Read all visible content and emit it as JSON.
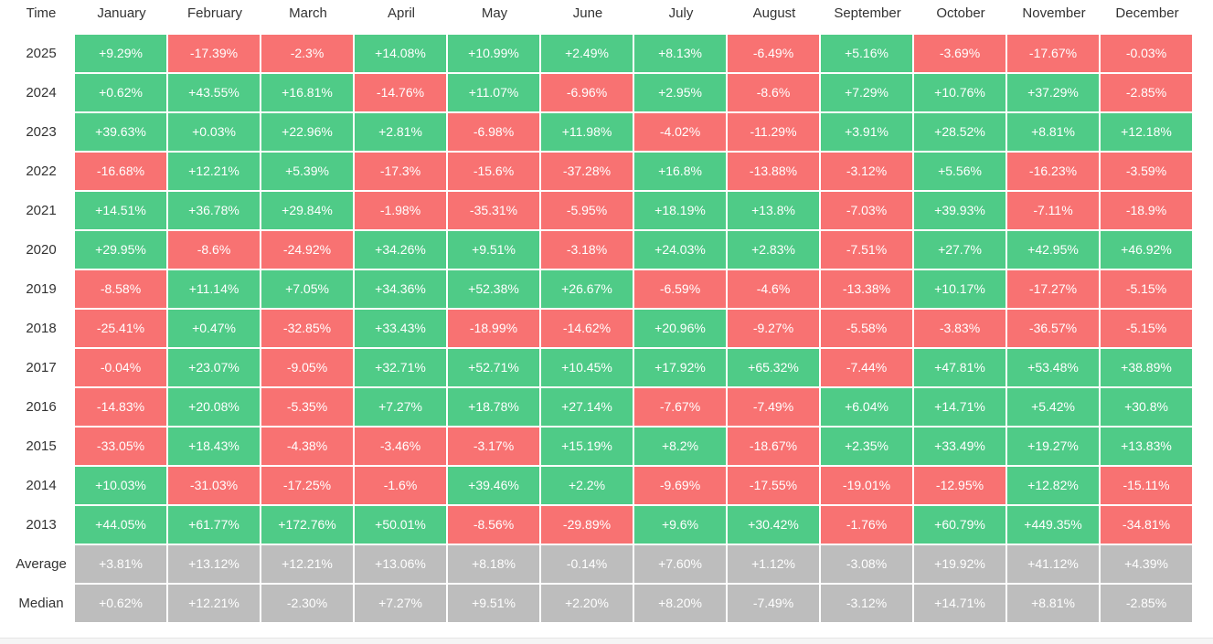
{
  "table": {
    "header": [
      "Time",
      "January",
      "February",
      "March",
      "April",
      "May",
      "June",
      "July",
      "August",
      "September",
      "October",
      "November",
      "December"
    ],
    "rows": [
      [
        "2025",
        "+9.29%",
        "-17.39%",
        "-2.3%",
        "+14.08%",
        "+10.99%",
        "+2.49%",
        "+8.13%",
        "-6.49%",
        "+5.16%",
        "-3.69%",
        "-17.67%",
        "-0.03%"
      ],
      [
        "2024",
        "+0.62%",
        "+43.55%",
        "+16.81%",
        "-14.76%",
        "+11.07%",
        "-6.96%",
        "+2.95%",
        "-8.6%",
        "+7.29%",
        "+10.76%",
        "+37.29%",
        "-2.85%"
      ],
      [
        "2023",
        "+39.63%",
        "+0.03%",
        "+22.96%",
        "+2.81%",
        "-6.98%",
        "+11.98%",
        "-4.02%",
        "-11.29%",
        "+3.91%",
        "+28.52%",
        "+8.81%",
        "+12.18%"
      ],
      [
        "2022",
        "-16.68%",
        "+12.21%",
        "+5.39%",
        "-17.3%",
        "-15.6%",
        "-37.28%",
        "+16.8%",
        "-13.88%",
        "-3.12%",
        "+5.56%",
        "-16.23%",
        "-3.59%"
      ],
      [
        "2021",
        "+14.51%",
        "+36.78%",
        "+29.84%",
        "-1.98%",
        "-35.31%",
        "-5.95%",
        "+18.19%",
        "+13.8%",
        "-7.03%",
        "+39.93%",
        "-7.11%",
        "-18.9%"
      ],
      [
        "2020",
        "+29.95%",
        "-8.6%",
        "-24.92%",
        "+34.26%",
        "+9.51%",
        "-3.18%",
        "+24.03%",
        "+2.83%",
        "-7.51%",
        "+27.7%",
        "+42.95%",
        "+46.92%"
      ],
      [
        "2019",
        "-8.58%",
        "+11.14%",
        "+7.05%",
        "+34.36%",
        "+52.38%",
        "+26.67%",
        "-6.59%",
        "-4.6%",
        "-13.38%",
        "+10.17%",
        "-17.27%",
        "-5.15%"
      ],
      [
        "2018",
        "-25.41%",
        "+0.47%",
        "-32.85%",
        "+33.43%",
        "-18.99%",
        "-14.62%",
        "+20.96%",
        "-9.27%",
        "-5.58%",
        "-3.83%",
        "-36.57%",
        "-5.15%"
      ],
      [
        "2017",
        "-0.04%",
        "+23.07%",
        "-9.05%",
        "+32.71%",
        "+52.71%",
        "+10.45%",
        "+17.92%",
        "+65.32%",
        "-7.44%",
        "+47.81%",
        "+53.48%",
        "+38.89%"
      ],
      [
        "2016",
        "-14.83%",
        "+20.08%",
        "-5.35%",
        "+7.27%",
        "+18.78%",
        "+27.14%",
        "-7.67%",
        "-7.49%",
        "+6.04%",
        "+14.71%",
        "+5.42%",
        "+30.8%"
      ],
      [
        "2015",
        "-33.05%",
        "+18.43%",
        "-4.38%",
        "-3.46%",
        "-3.17%",
        "+15.19%",
        "+8.2%",
        "-18.67%",
        "+2.35%",
        "+33.49%",
        "+19.27%",
        "+13.83%"
      ],
      [
        "2014",
        "+10.03%",
        "-31.03%",
        "-17.25%",
        "-1.6%",
        "+39.46%",
        "+2.2%",
        "-9.69%",
        "-17.55%",
        "-19.01%",
        "-12.95%",
        "+12.82%",
        "-15.11%"
      ],
      [
        "2013",
        "+44.05%",
        "+61.77%",
        "+172.76%",
        "+50.01%",
        "-8.56%",
        "-29.89%",
        "+9.6%",
        "+30.42%",
        "-1.76%",
        "+60.79%",
        "+449.35%",
        "-34.81%"
      ]
    ],
    "summary_rows": [
      [
        "Average",
        "+3.81%",
        "+13.12%",
        "+12.21%",
        "+13.06%",
        "+8.18%",
        "-0.14%",
        "+7.60%",
        "+1.12%",
        "-3.08%",
        "+19.92%",
        "+41.12%",
        "+4.39%"
      ],
      [
        "Median",
        "+0.62%",
        "+12.21%",
        "-2.30%",
        "+7.27%",
        "+9.51%",
        "+2.20%",
        "+8.20%",
        "-7.49%",
        "-3.12%",
        "+14.71%",
        "+8.81%",
        "-2.85%"
      ]
    ]
  },
  "colors": {
    "up": "#4fcb87",
    "down": "#f87272",
    "summary": "#bdbdbd"
  }
}
